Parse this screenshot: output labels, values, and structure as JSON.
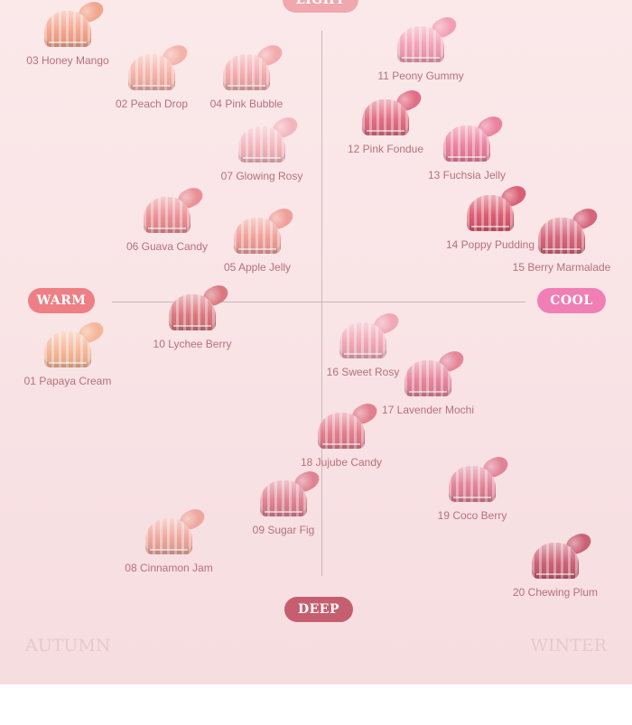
{
  "axes": {
    "top": "LIGHT",
    "left": "WARM",
    "right": "COOL",
    "bottom": "DEEP"
  },
  "seasons": {
    "left": "AUTUMN",
    "right": "WINTER"
  },
  "products": [
    {
      "id": "01",
      "label": "01 Papaya Cream",
      "color": "#f4b494"
    },
    {
      "id": "02",
      "label": "02 Peach Drop",
      "color": "#f4b0a5"
    },
    {
      "id": "03",
      "label": "03 Honey Mango",
      "color": "#f2a28a"
    },
    {
      "id": "04",
      "label": "04 Pink Bubble",
      "color": "#f2a8ab"
    },
    {
      "id": "05",
      "label": "05 Apple Jelly",
      "color": "#ef9c95"
    },
    {
      "id": "06",
      "label": "06 Guava Candy",
      "color": "#ea8c91"
    },
    {
      "id": "07",
      "label": "07 Glowing Rosy",
      "color": "#f3b3bb"
    },
    {
      "id": "08",
      "label": "08 Cinnamon Jam",
      "color": "#eda49a"
    },
    {
      "id": "09",
      "label": "09 Sugar Fig",
      "color": "#de7e8f"
    },
    {
      "id": "10",
      "label": "10 Lychee Berry",
      "color": "#d9737a"
    },
    {
      "id": "11",
      "label": "11 Peony Gummy",
      "color": "#f29cb2"
    },
    {
      "id": "12",
      "label": "12 Pink Fondue",
      "color": "#e0687f"
    },
    {
      "id": "13",
      "label": "13 Fuchsia Jelly",
      "color": "#ea7c9c"
    },
    {
      "id": "14",
      "label": "14 Poppy Pudding",
      "color": "#d9566c"
    },
    {
      "id": "15",
      "label": "15 Berry Marmalade",
      "color": "#d45f76"
    },
    {
      "id": "16",
      "label": "16 Sweet Rosy",
      "color": "#f0a5b3"
    },
    {
      "id": "17",
      "label": "17 Lavender Mochi",
      "color": "#e48197"
    },
    {
      "id": "18",
      "label": "18 Jujube Candy",
      "color": "#e1798a"
    },
    {
      "id": "19",
      "label": "19 Coco Berry",
      "color": "#e07e93"
    },
    {
      "id": "20",
      "label": "20 Chewing Plum",
      "color": "#c95b70"
    }
  ]
}
